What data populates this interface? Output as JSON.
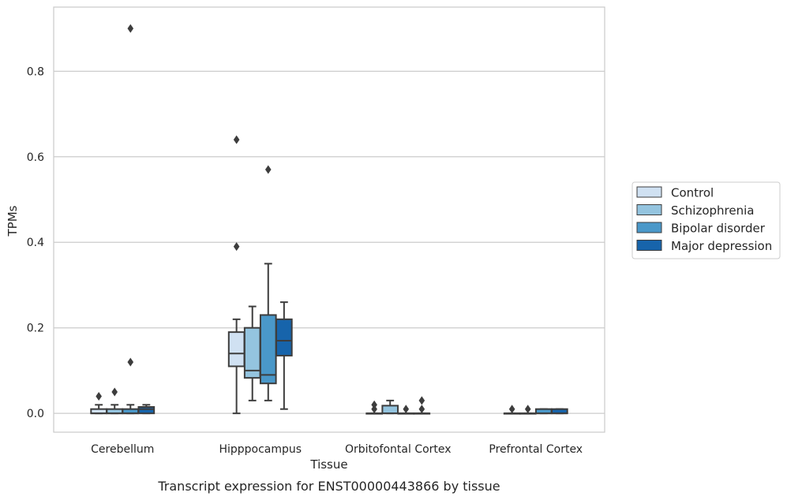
{
  "chart_data": {
    "type": "box",
    "caption": "Transcript expression for ENST00000443866 by tissue",
    "xlabel": "Tissue",
    "ylabel": "TPMs",
    "ylim": [
      -0.044,
      0.95
    ],
    "yticks": [
      "0.0",
      "0.2",
      "0.4",
      "0.6",
      "0.8"
    ],
    "grid": true,
    "legend_position": "right",
    "categories": [
      "Cerebellum",
      "Hipppocampus",
      "Orbitofontal Cortex",
      "Prefrontal Cortex"
    ],
    "series": [
      {
        "name": "Control",
        "color": "#d0e1f2",
        "boxes": [
          {
            "whislo": 0.0,
            "q1": 0.0,
            "med": 0.0,
            "q3": 0.01,
            "whishi": 0.02,
            "fliers": [
              0.04
            ]
          },
          {
            "whislo": 0.0,
            "q1": 0.11,
            "med": 0.14,
            "q3": 0.19,
            "whishi": 0.22,
            "fliers": [
              0.39,
              0.64
            ]
          },
          {
            "whislo": 0.0,
            "q1": 0.0,
            "med": 0.0,
            "q3": 0.0,
            "whishi": 0.0,
            "fliers": [
              0.01,
              0.02
            ]
          },
          {
            "whislo": 0.0,
            "q1": 0.0,
            "med": 0.0,
            "q3": 0.0,
            "whishi": 0.0,
            "fliers": [
              0.01
            ]
          }
        ]
      },
      {
        "name": "Schizophrenia",
        "color": "#94c4df",
        "boxes": [
          {
            "whislo": 0.0,
            "q1": 0.0,
            "med": 0.0,
            "q3": 0.01,
            "whishi": 0.02,
            "fliers": [
              0.05
            ]
          },
          {
            "whislo": 0.03,
            "q1": 0.083,
            "med": 0.1,
            "q3": 0.2,
            "whishi": 0.25,
            "fliers": []
          },
          {
            "whislo": 0.0,
            "q1": 0.0,
            "med": 0.0,
            "q3": 0.018,
            "whishi": 0.03,
            "fliers": []
          },
          {
            "whislo": 0.0,
            "q1": 0.0,
            "med": 0.0,
            "q3": 0.0,
            "whishi": 0.0,
            "fliers": [
              0.01
            ]
          }
        ]
      },
      {
        "name": "Bipolar disorder",
        "color": "#4a98c9",
        "boxes": [
          {
            "whislo": 0.0,
            "q1": 0.0,
            "med": 0.0,
            "q3": 0.01,
            "whishi": 0.02,
            "fliers": [
              0.12,
              0.9
            ]
          },
          {
            "whislo": 0.03,
            "q1": 0.07,
            "med": 0.09,
            "q3": 0.23,
            "whishi": 0.35,
            "fliers": [
              0.57
            ]
          },
          {
            "whislo": 0.0,
            "q1": 0.0,
            "med": 0.0,
            "q3": 0.0,
            "whishi": 0.0,
            "fliers": [
              0.01
            ]
          },
          {
            "whislo": 0.0,
            "q1": 0.0,
            "med": 0.0,
            "q3": 0.01,
            "whishi": 0.01,
            "fliers": []
          }
        ]
      },
      {
        "name": "Major depression",
        "color": "#1764ab",
        "boxes": [
          {
            "whislo": 0.0,
            "q1": 0.0,
            "med": 0.01,
            "q3": 0.015,
            "whishi": 0.02,
            "fliers": []
          },
          {
            "whislo": 0.01,
            "q1": 0.135,
            "med": 0.17,
            "q3": 0.22,
            "whishi": 0.26,
            "fliers": []
          },
          {
            "whislo": 0.0,
            "q1": 0.0,
            "med": 0.0,
            "q3": 0.0,
            "whishi": 0.0,
            "fliers": [
              0.01,
              0.03
            ]
          },
          {
            "whislo": 0.0,
            "q1": 0.0,
            "med": 0.0,
            "q3": 0.01,
            "whishi": 0.01,
            "fliers": []
          }
        ]
      }
    ]
  }
}
